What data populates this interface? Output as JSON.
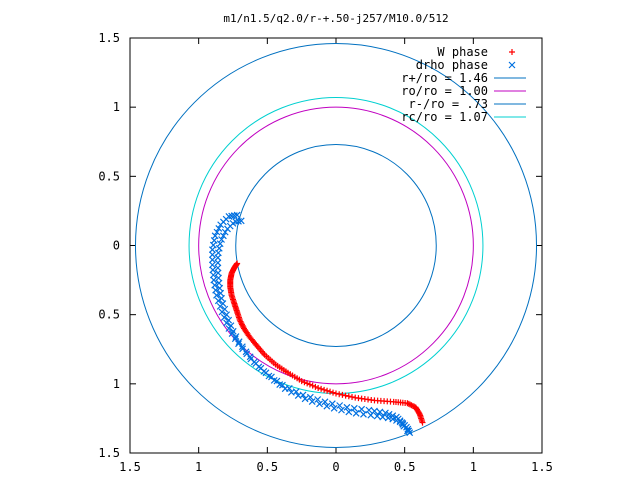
{
  "chart_data": {
    "type": "line",
    "title": "m1/n1.5/q2.0/r-+.50-j257/M10.0/512",
    "xlabel": "",
    "ylabel": "",
    "xlim": [
      -1.5,
      1.5
    ],
    "ylim": [
      -1.5,
      1.5
    ],
    "x_ticks": [
      -1.5,
      -1,
      -0.5,
      0,
      0.5,
      1,
      1.5
    ],
    "y_ticks": [
      -1.5,
      -1,
      -0.5,
      0,
      0.5,
      1,
      1.5
    ],
    "x_tick_labels": [
      "1.5",
      "1",
      "0.5",
      "0",
      "0.5",
      "1",
      "1.5"
    ],
    "y_tick_labels": [
      "1.5",
      "1",
      "0.5",
      "0",
      "0.5",
      "1",
      "1.5"
    ],
    "grid": false,
    "legend_position": "top-right",
    "series": [
      {
        "name": "W phase",
        "kind": "points",
        "marker": "+",
        "color": "#ff0000",
        "points": [
          [
            -0.72,
            -0.13
          ],
          [
            -0.74,
            -0.16
          ],
          [
            -0.76,
            -0.2
          ],
          [
            -0.77,
            -0.25
          ],
          [
            -0.77,
            -0.3
          ],
          [
            -0.76,
            -0.36
          ],
          [
            -0.74,
            -0.42
          ],
          [
            -0.72,
            -0.48
          ],
          [
            -0.7,
            -0.54
          ],
          [
            -0.67,
            -0.6
          ],
          [
            -0.63,
            -0.66
          ],
          [
            -0.58,
            -0.72
          ],
          [
            -0.52,
            -0.79
          ],
          [
            -0.44,
            -0.86
          ],
          [
            -0.35,
            -0.92
          ],
          [
            -0.25,
            -0.98
          ],
          [
            -0.13,
            -1.03
          ],
          [
            0.0,
            -1.07
          ],
          [
            0.14,
            -1.1
          ],
          [
            0.28,
            -1.12
          ],
          [
            0.42,
            -1.13
          ],
          [
            0.52,
            -1.14
          ],
          [
            0.58,
            -1.17
          ],
          [
            0.61,
            -1.22
          ],
          [
            0.63,
            -1.28
          ]
        ]
      },
      {
        "name": "drho phase",
        "kind": "points",
        "marker": "x",
        "color": "#0070e0",
        "points": [
          [
            -0.7,
            0.2
          ],
          [
            -0.76,
            0.19
          ],
          [
            -0.82,
            0.13
          ],
          [
            -0.86,
            0.05
          ],
          [
            -0.88,
            -0.05
          ],
          [
            -0.88,
            -0.16
          ],
          [
            -0.87,
            -0.27
          ],
          [
            -0.85,
            -0.38
          ],
          [
            -0.81,
            -0.5
          ],
          [
            -0.76,
            -0.62
          ],
          [
            -0.69,
            -0.73
          ],
          [
            -0.6,
            -0.84
          ],
          [
            -0.49,
            -0.94
          ],
          [
            -0.37,
            -1.03
          ],
          [
            -0.22,
            -1.1
          ],
          [
            -0.06,
            -1.15
          ],
          [
            0.1,
            -1.19
          ],
          [
            0.26,
            -1.21
          ],
          [
            0.38,
            -1.23
          ],
          [
            0.46,
            -1.26
          ],
          [
            0.5,
            -1.3
          ],
          [
            0.52,
            -1.34
          ]
        ]
      },
      {
        "name": "r+/ro = 1.46",
        "kind": "circle",
        "radius": 1.46,
        "color": "#0070c0"
      },
      {
        "name": "ro/ro = 1.00",
        "kind": "circle",
        "radius": 1.0,
        "color": "#c000c0"
      },
      {
        "name": "r-/ro = .73",
        "kind": "circle",
        "radius": 0.73,
        "color": "#0070c0"
      },
      {
        "name": "rc/ro = 1.07",
        "kind": "circle",
        "radius": 1.07,
        "color": "#00d0d0"
      }
    ]
  }
}
